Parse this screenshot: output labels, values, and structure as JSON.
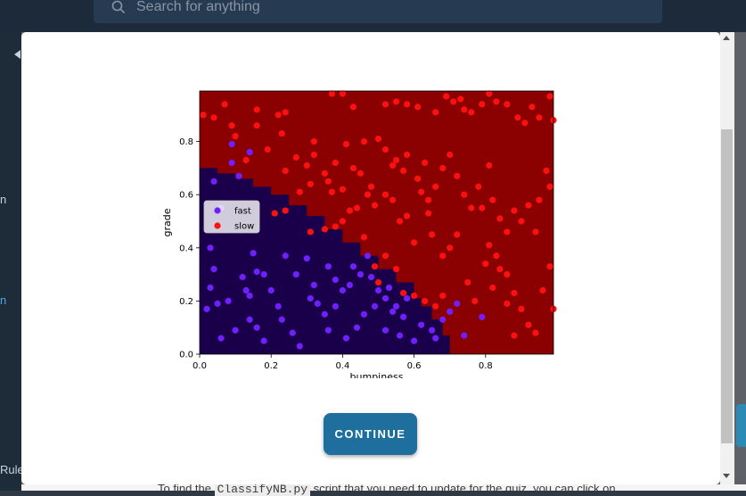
{
  "search": {
    "placeholder": "Search for anything"
  },
  "sidebar": {
    "fragment_a": "n",
    "fragment_b": "n",
    "fragment_c": "Rule"
  },
  "page": {
    "text_prefix": "To find the ",
    "text_code": "ClassifyNB.py",
    "text_suffix": " script that you need to update for the quiz, you can click on"
  },
  "modal": {
    "continue_label": "CONTINUE"
  },
  "colors": {
    "accent": "#1e6f9e",
    "region_fast": "#1a004a",
    "region_slow": "#8b0000",
    "point_fast": "#7020ff",
    "point_slow": "#ff1010"
  },
  "chart_data": {
    "type": "scatter",
    "xlabel": "bumpiness",
    "ylabel": "grade",
    "xlim": [
      0,
      0.99
    ],
    "ylim": [
      0,
      0.99
    ],
    "xticks": [
      "0.0",
      "0.2",
      "0.4",
      "0.6",
      "0.8"
    ],
    "yticks": [
      "0.0",
      "0.2",
      "0.4",
      "0.6",
      "0.8"
    ],
    "legend_position": "center-left",
    "background": "decision boundary: fast region lower-left, slow region elsewhere",
    "series": [
      {
        "name": "fast",
        "points": [
          [
            0.02,
            0.17
          ],
          [
            0.04,
            0.32
          ],
          [
            0.05,
            0.19
          ],
          [
            0.06,
            0.06
          ],
          [
            0.04,
            0.65
          ],
          [
            0.09,
            0.72
          ],
          [
            0.09,
            0.79
          ],
          [
            0.14,
            0.76
          ],
          [
            0.11,
            0.67
          ],
          [
            0.03,
            0.25
          ],
          [
            0.08,
            0.2
          ],
          [
            0.12,
            0.29
          ],
          [
            0.13,
            0.24
          ],
          [
            0.15,
            0.38
          ],
          [
            0.16,
            0.31
          ],
          [
            0.18,
            0.3
          ],
          [
            0.14,
            0.13
          ],
          [
            0.18,
            0.05
          ],
          [
            0.1,
            0.09
          ],
          [
            0.14,
            0.22
          ],
          [
            0.22,
            0.18
          ],
          [
            0.23,
            0.13
          ],
          [
            0.26,
            0.08
          ],
          [
            0.28,
            0.03
          ],
          [
            0.3,
            0.36
          ],
          [
            0.32,
            0.26
          ],
          [
            0.36,
            0.33
          ],
          [
            0.38,
            0.28
          ],
          [
            0.31,
            0.21
          ],
          [
            0.33,
            0.19
          ],
          [
            0.35,
            0.15
          ],
          [
            0.27,
            0.3
          ],
          [
            0.24,
            0.37
          ],
          [
            0.36,
            0.09
          ],
          [
            0.42,
            0.26
          ],
          [
            0.45,
            0.3
          ],
          [
            0.47,
            0.37
          ],
          [
            0.48,
            0.29
          ],
          [
            0.44,
            0.1
          ],
          [
            0.41,
            0.06
          ],
          [
            0.49,
            0.18
          ],
          [
            0.5,
            0.24
          ],
          [
            0.52,
            0.21
          ],
          [
            0.53,
            0.25
          ],
          [
            0.55,
            0.18
          ],
          [
            0.57,
            0.14
          ],
          [
            0.58,
            0.21
          ],
          [
            0.6,
            0.05
          ],
          [
            0.62,
            0.11
          ],
          [
            0.65,
            0.09
          ],
          [
            0.66,
            0.06
          ],
          [
            0.68,
            0.13
          ],
          [
            0.7,
            0.16
          ],
          [
            0.72,
            0.19
          ],
          [
            0.79,
            0.14
          ],
          [
            0.74,
            0.07
          ],
          [
            0.52,
            0.09
          ],
          [
            0.54,
            0.16
          ],
          [
            0.56,
            0.07
          ],
          [
            0.03,
            0.4
          ],
          [
            0.06,
            0.55
          ],
          [
            0.16,
            0.1
          ],
          [
            0.2,
            0.24
          ],
          [
            0.38,
            0.18
          ],
          [
            0.4,
            0.24
          ],
          [
            0.46,
            0.15
          ],
          [
            0.43,
            0.33
          ]
        ]
      },
      {
        "name": "slow",
        "points": [
          [
            0.01,
            0.9
          ],
          [
            0.04,
            0.89
          ],
          [
            0.07,
            0.94
          ],
          [
            0.1,
            0.82
          ],
          [
            0.09,
            0.86
          ],
          [
            0.13,
            0.73
          ],
          [
            0.16,
            0.86
          ],
          [
            0.16,
            0.92
          ],
          [
            0.19,
            0.77
          ],
          [
            0.22,
            0.9
          ],
          [
            0.24,
            0.91
          ],
          [
            0.23,
            0.83
          ],
          [
            0.27,
            0.74
          ],
          [
            0.24,
            0.69
          ],
          [
            0.28,
            0.61
          ],
          [
            0.3,
            0.71
          ],
          [
            0.32,
            0.75
          ],
          [
            0.31,
            0.64
          ],
          [
            0.32,
            0.8
          ],
          [
            0.35,
            0.68
          ],
          [
            0.36,
            0.65
          ],
          [
            0.37,
            0.61
          ],
          [
            0.38,
            0.72
          ],
          [
            0.4,
            0.62
          ],
          [
            0.41,
            0.79
          ],
          [
            0.43,
            0.7
          ],
          [
            0.45,
            0.68
          ],
          [
            0.46,
            0.8
          ],
          [
            0.48,
            0.63
          ],
          [
            0.5,
            0.81
          ],
          [
            0.52,
            0.77
          ],
          [
            0.54,
            0.71
          ],
          [
            0.55,
            0.73
          ],
          [
            0.57,
            0.69
          ],
          [
            0.58,
            0.75
          ],
          [
            0.61,
            0.66
          ],
          [
            0.63,
            0.72
          ],
          [
            0.64,
            0.58
          ],
          [
            0.66,
            0.63
          ],
          [
            0.68,
            0.7
          ],
          [
            0.7,
            0.75
          ],
          [
            0.72,
            0.67
          ],
          [
            0.74,
            0.6
          ],
          [
            0.76,
            0.55
          ],
          [
            0.78,
            0.63
          ],
          [
            0.79,
            0.55
          ],
          [
            0.81,
            0.71
          ],
          [
            0.82,
            0.58
          ],
          [
            0.84,
            0.51
          ],
          [
            0.86,
            0.46
          ],
          [
            0.88,
            0.54
          ],
          [
            0.9,
            0.5
          ],
          [
            0.92,
            0.56
          ],
          [
            0.94,
            0.46
          ],
          [
            0.95,
            0.58
          ],
          [
            0.97,
            0.69
          ],
          [
            0.98,
            0.63
          ],
          [
            0.37,
            0.98
          ],
          [
            0.4,
            0.98
          ],
          [
            0.43,
            0.93
          ],
          [
            0.52,
            0.94
          ],
          [
            0.55,
            0.95
          ],
          [
            0.58,
            0.94
          ],
          [
            0.61,
            0.93
          ],
          [
            0.66,
            0.91
          ],
          [
            0.69,
            0.97
          ],
          [
            0.71,
            0.95
          ],
          [
            0.73,
            0.96
          ],
          [
            0.74,
            0.92
          ],
          [
            0.76,
            0.91
          ],
          [
            0.79,
            0.94
          ],
          [
            0.81,
            0.98
          ],
          [
            0.83,
            0.95
          ],
          [
            0.86,
            0.94
          ],
          [
            0.89,
            0.89
          ],
          [
            0.91,
            0.87
          ],
          [
            0.93,
            0.93
          ],
          [
            0.95,
            0.89
          ],
          [
            0.98,
            0.97
          ],
          [
            0.99,
            0.88
          ],
          [
            0.81,
            0.41
          ],
          [
            0.83,
            0.37
          ],
          [
            0.86,
            0.3
          ],
          [
            0.88,
            0.23
          ],
          [
            0.9,
            0.17
          ],
          [
            0.92,
            0.11
          ],
          [
            0.94,
            0.08
          ],
          [
            0.96,
            0.24
          ],
          [
            0.98,
            0.33
          ],
          [
            0.99,
            0.17
          ],
          [
            0.75,
            0.27
          ],
          [
            0.77,
            0.2
          ],
          [
            0.8,
            0.34
          ],
          [
            0.82,
            0.25
          ],
          [
            0.84,
            0.32
          ],
          [
            0.86,
            0.19
          ],
          [
            0.88,
            0.07
          ],
          [
            0.65,
            0.45
          ],
          [
            0.68,
            0.37
          ],
          [
            0.7,
            0.4
          ],
          [
            0.72,
            0.45
          ],
          [
            0.64,
            0.53
          ],
          [
            0.62,
            0.61
          ],
          [
            0.6,
            0.42
          ],
          [
            0.58,
            0.52
          ],
          [
            0.56,
            0.5
          ],
          [
            0.54,
            0.58
          ],
          [
            0.52,
            0.6
          ],
          [
            0.49,
            0.56
          ],
          [
            0.47,
            0.6
          ],
          [
            0.44,
            0.55
          ],
          [
            0.42,
            0.54
          ],
          [
            0.4,
            0.5
          ],
          [
            0.38,
            0.48
          ],
          [
            0.35,
            0.47
          ],
          [
            0.31,
            0.46
          ],
          [
            0.24,
            0.54
          ],
          [
            0.21,
            0.53
          ],
          [
            0.46,
            0.44
          ],
          [
            0.5,
            0.27
          ],
          [
            0.52,
            0.37
          ],
          [
            0.55,
            0.32
          ],
          [
            0.57,
            0.23
          ],
          [
            0.6,
            0.22
          ],
          [
            0.63,
            0.2
          ],
          [
            0.66,
            0.18
          ],
          [
            0.68,
            0.22
          ],
          [
            0.49,
            0.33
          ]
        ]
      }
    ]
  }
}
